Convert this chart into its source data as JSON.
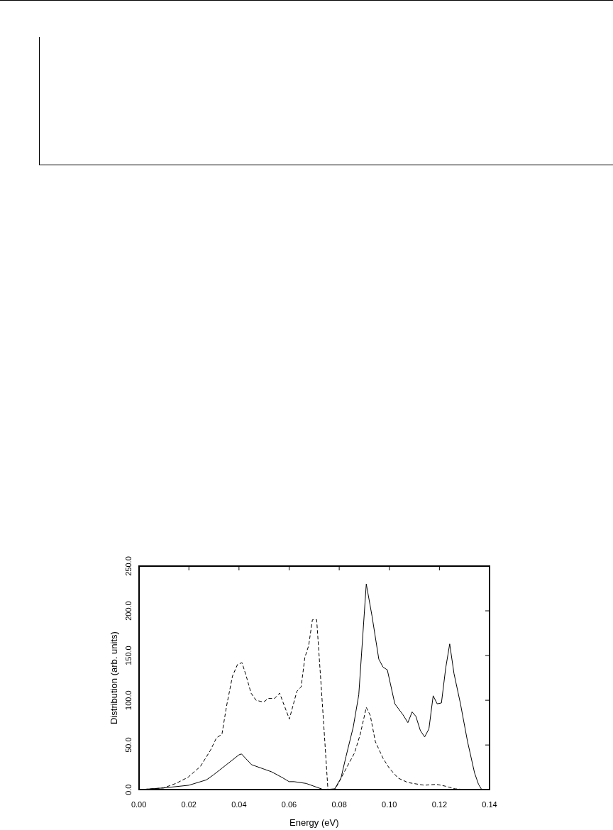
{
  "chart_data": {
    "type": "line",
    "xlabel": "Energy (eV)",
    "ylabel": "Distribution (arb. units)",
    "xlim": [
      0,
      0.14
    ],
    "ylim": [
      0,
      250
    ],
    "xticks": [
      {
        "value": 0,
        "label": "0.00"
      },
      {
        "value": 0.02,
        "label": "0.02"
      },
      {
        "value": 0.04,
        "label": "0.04"
      },
      {
        "value": 0.06,
        "label": "0.06"
      },
      {
        "value": 0.08,
        "label": "0.08"
      },
      {
        "value": 0.1,
        "label": "0.10"
      },
      {
        "value": 0.12,
        "label": "0.12"
      },
      {
        "value": 0.14,
        "label": "0.14"
      }
    ],
    "yticks": [
      {
        "value": 0,
        "label": "0.0"
      },
      {
        "value": 50,
        "label": "50.0"
      },
      {
        "value": 100,
        "label": "100.0"
      },
      {
        "value": 150,
        "label": "150.0"
      },
      {
        "value": 200,
        "label": "200.0"
      },
      {
        "value": 250,
        "label": "250.0"
      }
    ],
    "grid": false,
    "legend": false,
    "marker": "none",
    "series": [
      {
        "color": "#000000",
        "line_style": "solid",
        "x": [
          0,
          0.01,
          0.02,
          0.027,
          0.03,
          0.035,
          0.04,
          0.041,
          0.045,
          0.05,
          0.053,
          0.057,
          0.06,
          0.062,
          0.0668,
          0.0738,
          0.0782,
          0.0807,
          0.0827,
          0.0856,
          0.0878,
          0.0908,
          0.0931,
          0.0958,
          0.0975,
          0.0992,
          0.1022,
          0.1054,
          0.1074,
          0.1091,
          0.1106,
          0.1124,
          0.1141,
          0.1158,
          0.1175,
          0.1191,
          0.1208,
          0.1225,
          0.1241,
          0.1258,
          0.1284,
          0.1312,
          0.134,
          0.1356,
          0.1369
        ],
        "values": [
          0,
          2,
          5,
          11,
          17,
          28,
          39,
          40,
          28,
          23,
          20,
          14,
          9,
          9,
          7,
          0,
          1,
          13,
          37,
          70,
          106,
          230,
          194,
          146,
          137,
          134,
          96,
          84,
          75,
          87,
          82,
          66,
          59,
          68,
          105,
          96,
          97,
          136,
          163,
          130,
          96,
          54,
          19,
          6,
          0
        ]
      },
      {
        "color": "#000000",
        "line_style": "dashed",
        "x": [
          0,
          0.0099,
          0.0148,
          0.0197,
          0.0246,
          0.0286,
          0.031,
          0.0332,
          0.035,
          0.0374,
          0.0394,
          0.0412,
          0.0429,
          0.0448,
          0.0468,
          0.0498,
          0.0517,
          0.0542,
          0.0562,
          0.0601,
          0.0631,
          0.0648,
          0.0663,
          0.0678,
          0.0693,
          0.071,
          0.0728,
          0.0743,
          0.0755,
          0.0782,
          0.0802,
          0.0832,
          0.0861,
          0.0884,
          0.0908,
          0.0924,
          0.0944,
          0.0975,
          0.1,
          0.1035,
          0.1074,
          0.1139,
          0.1188,
          0.1223,
          0.1262,
          0.1312,
          0.137
        ],
        "values": [
          0,
          2,
          7,
          14,
          26,
          44,
          58,
          62,
          93,
          127,
          140,
          142,
          127,
          108,
          100,
          98,
          102,
          102,
          108,
          79,
          110,
          115,
          148,
          161,
          190,
          190,
          116,
          52,
          0,
          0,
          10,
          26,
          41,
          62,
          92,
          83,
          54,
          35,
          24,
          13,
          8,
          5,
          6,
          4,
          1,
          0,
          0
        ]
      }
    ]
  }
}
